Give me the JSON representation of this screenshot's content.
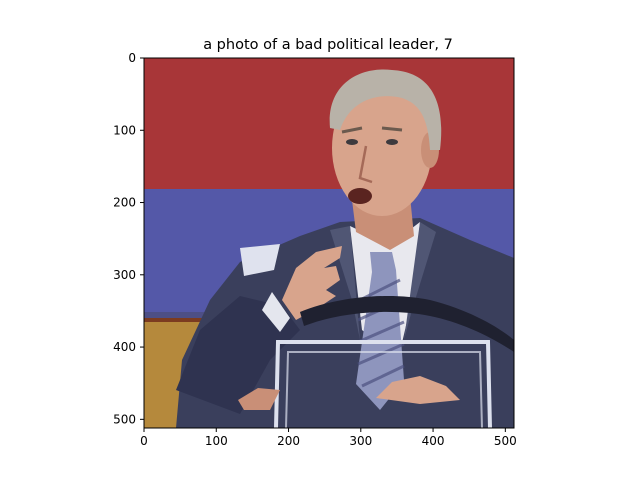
{
  "chart_data": {
    "type": "image",
    "title": "a photo of a bad political leader, 7",
    "xlabel": "",
    "ylabel": "",
    "xlim": [
      0,
      512
    ],
    "ylim": [
      512,
      0
    ],
    "x_ticks": [
      0,
      100,
      200,
      300,
      400,
      500
    ],
    "y_ticks": [
      0,
      100,
      200,
      300,
      400,
      500
    ],
    "grid": false,
    "image_content": "photo-illustration: man in suit gesturing at a clear podium in front of a red and blue backdrop"
  },
  "colors": {
    "backdrop_red": "#a83638",
    "backdrop_blue": "#5458a8",
    "suit": "#3a3f5c",
    "shirt": "#e8e8ee",
    "tie": "#8e95bd",
    "skin": "#d8a48c",
    "hair": "#b8b2a8",
    "podium_wood": "#b5893c"
  }
}
